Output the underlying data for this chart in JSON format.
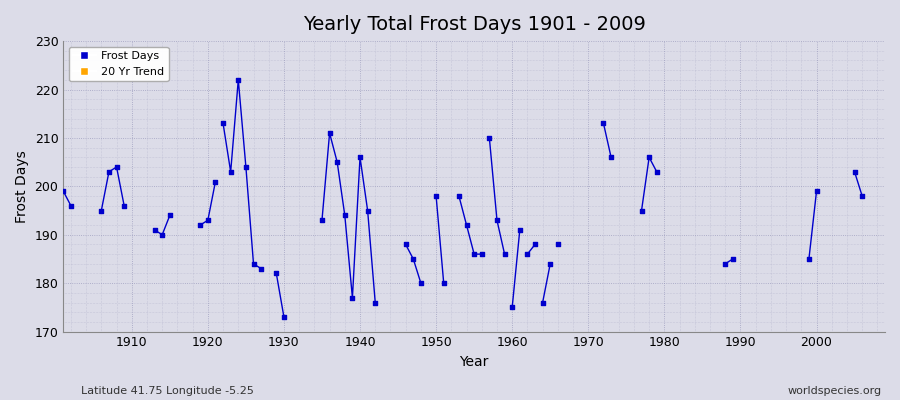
{
  "title": "Yearly Total Frost Days 1901 - 2009",
  "xlabel": "Year",
  "ylabel": "Frost Days",
  "xlim": [
    1901,
    2009
  ],
  "ylim": [
    170,
    230
  ],
  "yticks": [
    170,
    180,
    190,
    200,
    210,
    220,
    230
  ],
  "xticks": [
    1910,
    1920,
    1930,
    1940,
    1950,
    1960,
    1970,
    1980,
    1990,
    2000
  ],
  "bg_color": "#dcdce8",
  "plot_bg_color": "#dcdce8",
  "line_color": "#0000cc",
  "marker_color": "#0000cc",
  "title_fontsize": 14,
  "subtitle": "Latitude 41.75 Longitude -5.25",
  "watermark": "worldspecies.org",
  "legend_entries": [
    "Frost Days",
    "20 Yr Trend"
  ],
  "legend_colors": [
    "#0000cc",
    "#ffa500"
  ],
  "segments": [
    [
      [
        1901,
        199
      ],
      [
        1902,
        196
      ]
    ],
    [
      [
        1906,
        195
      ],
      [
        1907,
        203
      ],
      [
        1908,
        204
      ],
      [
        1909,
        196
      ]
    ],
    [
      [
        1913,
        191
      ],
      [
        1914,
        190
      ],
      [
        1915,
        194
      ]
    ],
    [
      [
        1919,
        192
      ],
      [
        1920,
        193
      ],
      [
        1921,
        201
      ]
    ],
    [
      [
        1922,
        213
      ],
      [
        1923,
        203
      ],
      [
        1924,
        222
      ],
      [
        1925,
        204
      ],
      [
        1926,
        184
      ],
      [
        1927,
        183
      ]
    ],
    [
      [
        1929,
        182
      ],
      [
        1930,
        173
      ]
    ],
    [
      [
        1935,
        193
      ],
      [
        1936,
        211
      ],
      [
        1937,
        205
      ],
      [
        1938,
        194
      ],
      [
        1939,
        177
      ],
      [
        1940,
        206
      ],
      [
        1941,
        195
      ],
      [
        1942,
        176
      ]
    ],
    [
      [
        1946,
        188
      ],
      [
        1947,
        185
      ],
      [
        1948,
        180
      ]
    ],
    [
      [
        1950,
        198
      ],
      [
        1951,
        180
      ]
    ],
    [
      [
        1953,
        198
      ],
      [
        1954,
        192
      ],
      [
        1955,
        186
      ],
      [
        1956,
        186
      ]
    ],
    [
      [
        1957,
        210
      ],
      [
        1958,
        193
      ],
      [
        1959,
        186
      ]
    ],
    [
      [
        1960,
        175
      ],
      [
        1961,
        191
      ]
    ],
    [
      [
        1962,
        186
      ],
      [
        1963,
        188
      ]
    ],
    [
      [
        1964,
        176
      ],
      [
        1965,
        184
      ]
    ],
    [
      [
        1966,
        188
      ]
    ],
    [
      [
        1972,
        213
      ],
      [
        1973,
        206
      ]
    ],
    [
      [
        1977,
        195
      ],
      [
        1978,
        206
      ],
      [
        1979,
        203
      ]
    ],
    [
      [
        1988,
        184
      ],
      [
        1989,
        185
      ]
    ],
    [
      [
        1999,
        185
      ],
      [
        2000,
        199
      ]
    ],
    [
      [
        2005,
        203
      ],
      [
        2006,
        198
      ]
    ]
  ]
}
